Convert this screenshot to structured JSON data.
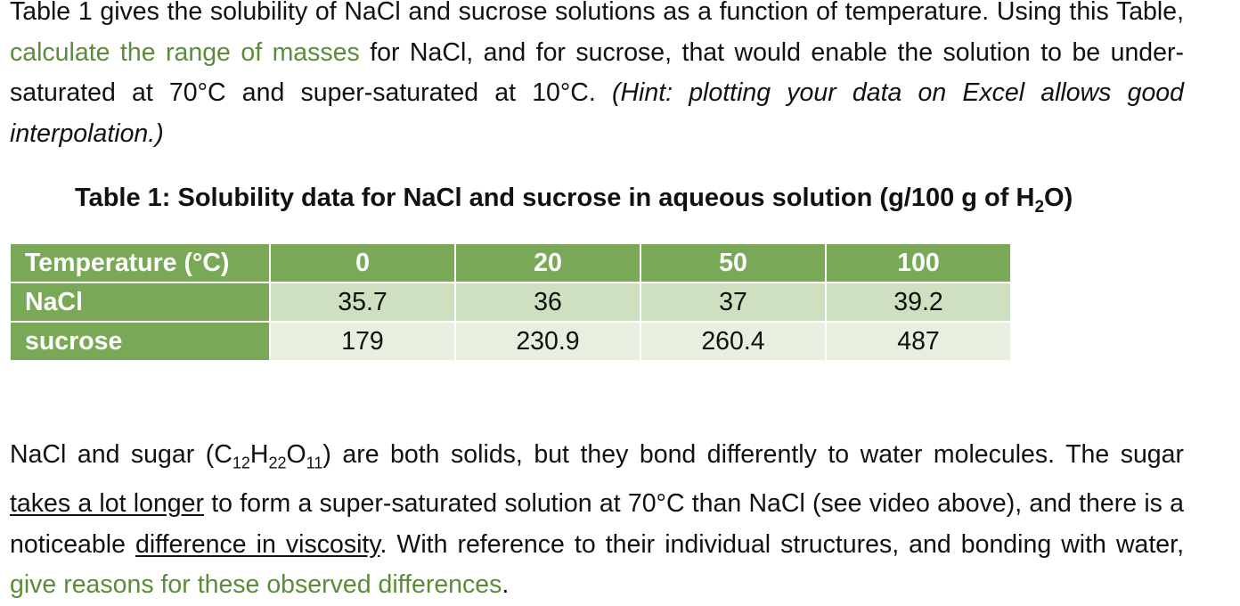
{
  "para1": {
    "t1": "Table 1 gives the solubility of NaCl and sucrose solutions as a function of temperature. Using this Table, ",
    "t2": "calculate the range of masses",
    "t3": " for NaCl, and for sucrose, that would enable the solution to be under-saturated at 70°C and super-saturated at 10°C. ",
    "t4": "(Hint: plotting your data on Excel allows good interpolation.)"
  },
  "caption": {
    "text": "Table 1: Solubility data for NaCl and sucrose in aqueous solution (g/100 g of H",
    "sub": "2",
    "end": "O)"
  },
  "table": {
    "header_label": "Temperature (°C)",
    "temperatures": [
      "0",
      "20",
      "50",
      "100"
    ],
    "rows": [
      {
        "label": "NaCl",
        "values": [
          "35.7",
          "36",
          "37",
          "39.2"
        ]
      },
      {
        "label": "sucrose",
        "values": [
          "179",
          "230.9",
          "260.4",
          "487"
        ]
      }
    ]
  },
  "para2": {
    "t1": "NaCl and sugar (C",
    "s1": "12",
    "t2": "H",
    "s2": "22",
    "t3": "O",
    "s3": "11",
    "t4": ") are both solids, but they bond differently to water molecules. The sugar ",
    "u1": "takes a lot longer",
    "t5": " to form a super-saturated solution at 70°C than NaCl (see video above), and there is a noticeable ",
    "u2": "difference in viscosity",
    "t6": ". With reference to their individual structures, and bonding with water, ",
    "g1": "give reasons for these observed differences",
    "t7": "."
  },
  "colors": {
    "green_text": "#5b8c3a",
    "header_green": "#79a957",
    "row1_green": "#cee0c0",
    "row2_green": "#e7efe0"
  }
}
